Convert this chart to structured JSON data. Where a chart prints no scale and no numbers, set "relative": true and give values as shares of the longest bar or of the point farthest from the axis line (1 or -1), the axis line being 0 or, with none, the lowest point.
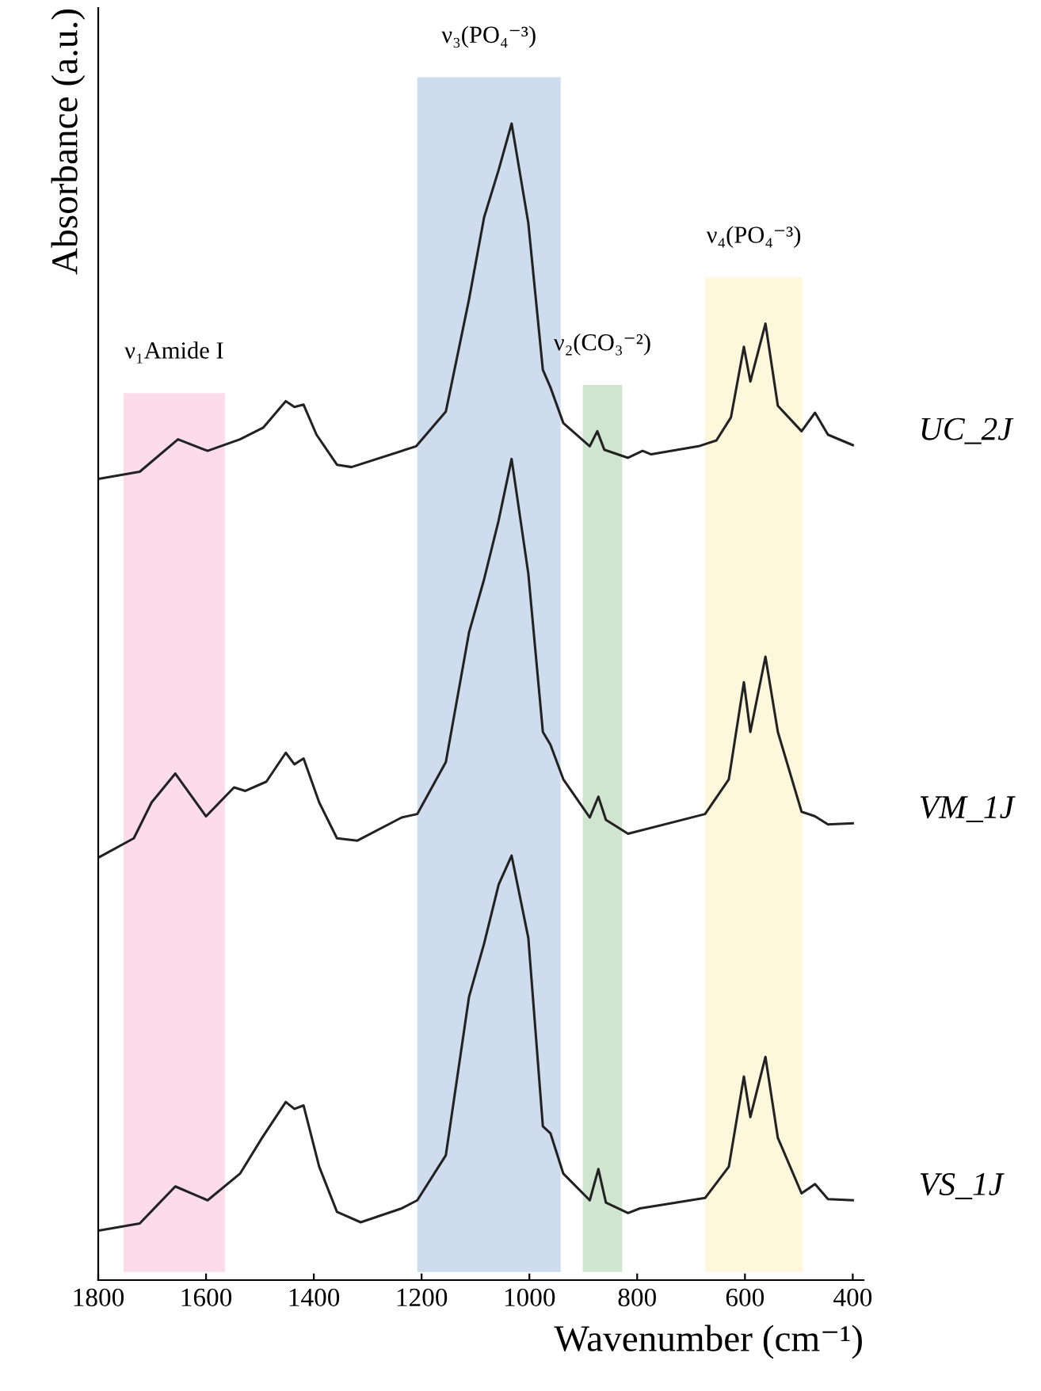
{
  "chart_data": {
    "type": "line",
    "relative": true,
    "xlabel": "Wavenumber (cm⁻¹)",
    "ylabel": "Absorbance (a.u.)",
    "xlim": [
      1800,
      380
    ],
    "xticks": [
      1800,
      1600,
      1400,
      1200,
      1000,
      800,
      600,
      400
    ],
    "tick_labels": "x",
    "grid": false,
    "marker": "none",
    "line_style": "solid",
    "x": [
      1797,
      1723,
      1652,
      1597,
      1537,
      1494,
      1452,
      1436,
      1419,
      1395,
      1357,
      1330,
      1210,
      1155,
      1112,
      1084,
      1057,
      1033,
      1002,
      975,
      961,
      937,
      888,
      874,
      861,
      817,
      790,
      774,
      686,
      653,
      626,
      602,
      590,
      562,
      539,
      495,
      470,
      446,
      400
    ],
    "series": [
      {
        "name": "UC_2J",
        "color": "#222222",
        "values": [
          0.693,
          0.699,
          0.727,
          0.717,
          0.727,
          0.737,
          0.76,
          0.755,
          0.757,
          0.731,
          0.705,
          0.703,
          0.721,
          0.751,
          0.848,
          0.919,
          0.96,
          1.0,
          0.914,
          0.787,
          0.772,
          0.741,
          0.721,
          0.734,
          0.718,
          0.711,
          0.717,
          0.714,
          0.721,
          0.726,
          0.746,
          0.807,
          0.777,
          0.827,
          0.756,
          0.734,
          0.75,
          0.731,
          0.722
        ]
      },
      {
        "name": "VM_1J",
        "color": "#222222",
        "x": [
          1797,
          1734,
          1701,
          1657,
          1600,
          1548,
          1527,
          1488,
          1452,
          1436,
          1419,
          1390,
          1357,
          1319,
          1237,
          1208,
          1155,
          1112,
          1084,
          1057,
          1033,
          1002,
          975,
          961,
          937,
          888,
          872,
          858,
          817,
          674,
          630,
          602,
          590,
          562,
          539,
          495,
          470,
          446,
          400
        ],
        "values": [
          0.366,
          0.382,
          0.413,
          0.438,
          0.401,
          0.426,
          0.423,
          0.431,
          0.456,
          0.446,
          0.451,
          0.413,
          0.382,
          0.38,
          0.4,
          0.403,
          0.448,
          0.56,
          0.606,
          0.657,
          0.71,
          0.611,
          0.474,
          0.463,
          0.433,
          0.4,
          0.418,
          0.398,
          0.386,
          0.403,
          0.433,
          0.517,
          0.474,
          0.539,
          0.474,
          0.405,
          0.401,
          0.394,
          0.395
        ]
      },
      {
        "name": "VS_1J",
        "color": "#222222",
        "x": [
          1797,
          1723,
          1657,
          1597,
          1537,
          1496,
          1452,
          1436,
          1419,
          1390,
          1357,
          1313,
          1237,
          1208,
          1155,
          1112,
          1084,
          1057,
          1033,
          1002,
          975,
          961,
          937,
          888,
          872,
          858,
          817,
          795,
          674,
          630,
          602,
          590,
          562,
          539,
          495,
          470,
          446,
          400
        ],
        "values": [
          0.043,
          0.049,
          0.081,
          0.069,
          0.092,
          0.123,
          0.154,
          0.148,
          0.151,
          0.098,
          0.059,
          0.05,
          0.062,
          0.069,
          0.108,
          0.245,
          0.291,
          0.342,
          0.367,
          0.296,
          0.133,
          0.127,
          0.092,
          0.069,
          0.096,
          0.067,
          0.058,
          0.062,
          0.071,
          0.098,
          0.176,
          0.141,
          0.193,
          0.123,
          0.075,
          0.083,
          0.07,
          0.069
        ]
      }
    ],
    "bands": [
      {
        "axis": "x",
        "from": 1753,
        "to": 1565,
        "label": "ν₁Amide I",
        "color": "#fcdce8"
      },
      {
        "axis": "x",
        "from": 1208,
        "to": 942,
        "label": "ν₃(PO₄⁻³)",
        "color": "#cfdcee"
      },
      {
        "axis": "x",
        "from": 901,
        "to": 828,
        "label": "ν₂(CO₃⁻²)",
        "color": "#cfe5cf"
      },
      {
        "axis": "x",
        "from": 674,
        "to": 493,
        "label": "ν₄(PO₄⁻³)",
        "color": "#fdf7dc"
      }
    ]
  }
}
